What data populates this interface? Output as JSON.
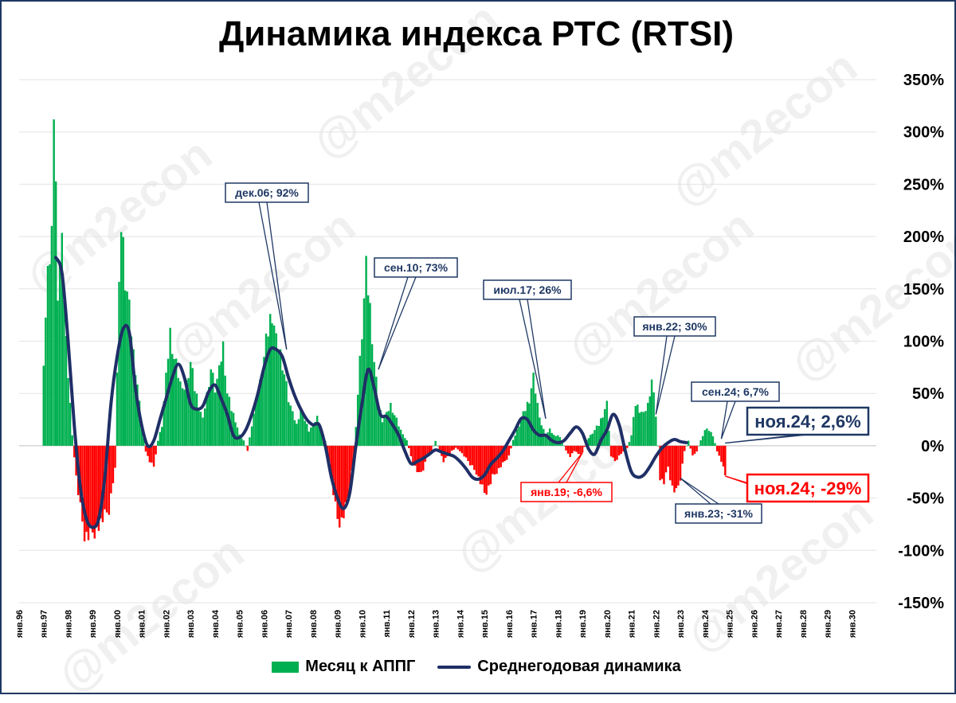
{
  "title": "Динамика индекса РТС (RTSI)",
  "watermark": "@m2econ",
  "colors": {
    "positive_bar": "#00b050",
    "negative_bar": "#ff0000",
    "line": "#1f2f66",
    "frame": "#1f3864",
    "red_label": "#ff0000",
    "navy_label": "#1f3864"
  },
  "legend": {
    "bars": "Месяц к АППГ",
    "line": "Среднегодовая динамика"
  },
  "chart_data": {
    "type": "bar",
    "title": "Динамика индекса РТС (RTSI)",
    "xlabel": "",
    "ylabel": "",
    "ylim": [
      -150,
      350
    ],
    "y_ticks": [
      "350%",
      "300%",
      "250%",
      "200%",
      "150%",
      "100%",
      "50%",
      "0%",
      "-50%",
      "-100%",
      "-150%"
    ],
    "x_ticks": [
      "янв.96",
      "янв.97",
      "янв.98",
      "янв.99",
      "янв.00",
      "янв.01",
      "янв.02",
      "янв.03",
      "янв.04",
      "янв.05",
      "янв.06",
      "янв.07",
      "янв.08",
      "янв.09",
      "янв.10",
      "янв.11",
      "янв.12",
      "янв.13",
      "янв.14",
      "янв.15",
      "янв.16",
      "янв.17",
      "янв.18",
      "янв.19",
      "янв.20",
      "янв.21",
      "янв.22",
      "янв.23",
      "янв.24",
      "янв.25",
      "янв.26",
      "янв.27",
      "янв.28",
      "янв.29",
      "янв.30"
    ],
    "x_start": 1996.0,
    "gridlines": true,
    "legend_position": "bottom",
    "series": [
      {
        "name": "Месяц к АППГ",
        "kind": "bars",
        "note": "monthly year-over-year change, %, from янв.97 to ноя.24",
        "points": [
          [
            1997.0,
            85
          ],
          [
            1997.17,
            160
          ],
          [
            1997.33,
            205
          ],
          [
            1997.42,
            320
          ],
          [
            1997.58,
            150
          ],
          [
            1997.75,
            185
          ],
          [
            1997.92,
            100
          ],
          [
            1998.17,
            10
          ],
          [
            1998.33,
            -30
          ],
          [
            1998.5,
            -60
          ],
          [
            1998.67,
            -85
          ],
          [
            1998.83,
            -88
          ],
          [
            1999.0,
            -85
          ],
          [
            1999.33,
            -75
          ],
          [
            1999.67,
            -60
          ],
          [
            1999.92,
            -20
          ],
          [
            2000.0,
            70
          ],
          [
            2000.17,
            215
          ],
          [
            2000.33,
            165
          ],
          [
            2000.5,
            130
          ],
          [
            2000.67,
            90
          ],
          [
            2000.83,
            60
          ],
          [
            2001.0,
            20
          ],
          [
            2001.17,
            -5
          ],
          [
            2001.33,
            -15
          ],
          [
            2001.5,
            -20
          ],
          [
            2001.67,
            5
          ],
          [
            2001.83,
            20
          ],
          [
            2002.0,
            65
          ],
          [
            2002.17,
            110
          ],
          [
            2002.33,
            85
          ],
          [
            2002.5,
            70
          ],
          [
            2002.67,
            50
          ],
          [
            2002.83,
            60
          ],
          [
            2003.0,
            80
          ],
          [
            2003.17,
            55
          ],
          [
            2003.33,
            40
          ],
          [
            2003.5,
            25
          ],
          [
            2003.67,
            50
          ],
          [
            2003.83,
            75
          ],
          [
            2004.0,
            55
          ],
          [
            2004.17,
            70
          ],
          [
            2004.33,
            95
          ],
          [
            2004.5,
            50
          ],
          [
            2004.67,
            35
          ],
          [
            2004.83,
            25
          ],
          [
            2005.0,
            10
          ],
          [
            2005.17,
            5
          ],
          [
            2005.33,
            -5
          ],
          [
            2005.5,
            20
          ],
          [
            2005.67,
            40
          ],
          [
            2005.83,
            60
          ],
          [
            2006.0,
            85
          ],
          [
            2006.17,
            110
          ],
          [
            2006.33,
            130
          ],
          [
            2006.5,
            100
          ],
          [
            2006.67,
            90
          ],
          [
            2006.83,
            70
          ],
          [
            2007.0,
            45
          ],
          [
            2007.17,
            30
          ],
          [
            2007.33,
            20
          ],
          [
            2007.5,
            35
          ],
          [
            2007.67,
            25
          ],
          [
            2007.83,
            15
          ],
          [
            2008.0,
            20
          ],
          [
            2008.17,
            28
          ],
          [
            2008.33,
            15
          ],
          [
            2008.5,
            5
          ],
          [
            2008.67,
            -20
          ],
          [
            2008.83,
            -45
          ],
          [
            2009.0,
            -70
          ],
          [
            2009.17,
            -72
          ],
          [
            2009.33,
            -60
          ],
          [
            2009.5,
            -40
          ],
          [
            2009.67,
            -10
          ],
          [
            2009.83,
            50
          ],
          [
            2010.0,
            110
          ],
          [
            2010.17,
            165
          ],
          [
            2010.33,
            130
          ],
          [
            2010.5,
            80
          ],
          [
            2010.67,
            40
          ],
          [
            2010.83,
            25
          ],
          [
            2011.0,
            30
          ],
          [
            2011.17,
            40
          ],
          [
            2011.33,
            30
          ],
          [
            2011.5,
            20
          ],
          [
            2011.67,
            10
          ],
          [
            2011.83,
            5
          ],
          [
            2012.0,
            -10
          ],
          [
            2012.17,
            -20
          ],
          [
            2012.33,
            -28
          ],
          [
            2012.5,
            -22
          ],
          [
            2012.67,
            -10
          ],
          [
            2012.83,
            -5
          ],
          [
            2013.0,
            5
          ],
          [
            2013.17,
            -5
          ],
          [
            2013.33,
            -15
          ],
          [
            2013.5,
            -10
          ],
          [
            2013.67,
            -5
          ],
          [
            2013.83,
            -2
          ],
          [
            2014.0,
            -5
          ],
          [
            2014.17,
            -10
          ],
          [
            2014.33,
            -15
          ],
          [
            2014.5,
            -20
          ],
          [
            2014.67,
            -25
          ],
          [
            2014.83,
            -35
          ],
          [
            2015.0,
            -45
          ],
          [
            2015.17,
            -40
          ],
          [
            2015.33,
            -30
          ],
          [
            2015.5,
            -25
          ],
          [
            2015.67,
            -20
          ],
          [
            2015.83,
            -15
          ],
          [
            2016.0,
            -10
          ],
          [
            2016.17,
            5
          ],
          [
            2016.33,
            15
          ],
          [
            2016.5,
            25
          ],
          [
            2016.67,
            35
          ],
          [
            2016.83,
            45
          ],
          [
            2017.0,
            65
          ],
          [
            2017.17,
            40
          ],
          [
            2017.33,
            20
          ],
          [
            2017.5,
            10
          ],
          [
            2017.67,
            15
          ],
          [
            2017.83,
            10
          ],
          [
            2018.0,
            10
          ],
          [
            2018.17,
            5
          ],
          [
            2018.33,
            -5
          ],
          [
            2018.5,
            -10
          ],
          [
            2018.67,
            -5
          ],
          [
            2018.83,
            -8
          ],
          [
            2019.0,
            -7
          ],
          [
            2019.17,
            5
          ],
          [
            2019.33,
            10
          ],
          [
            2019.5,
            15
          ],
          [
            2019.67,
            20
          ],
          [
            2019.83,
            30
          ],
          [
            2020.0,
            40
          ],
          [
            2020.17,
            -10
          ],
          [
            2020.33,
            -15
          ],
          [
            2020.5,
            -10
          ],
          [
            2020.67,
            -5
          ],
          [
            2020.83,
            -2
          ],
          [
            2021.0,
            10
          ],
          [
            2021.17,
            40
          ],
          [
            2021.33,
            35
          ],
          [
            2021.5,
            30
          ],
          [
            2021.67,
            40
          ],
          [
            2021.83,
            65
          ],
          [
            2022.0,
            30
          ],
          [
            2022.17,
            -30
          ],
          [
            2022.33,
            -35
          ],
          [
            2022.5,
            -20
          ],
          [
            2022.67,
            -40
          ],
          [
            2022.83,
            -45
          ],
          [
            2023.0,
            -31
          ],
          [
            2023.17,
            -5
          ],
          [
            2023.33,
            5
          ],
          [
            2023.5,
            -10
          ],
          [
            2023.67,
            -5
          ],
          [
            2023.83,
            5
          ],
          [
            2024.0,
            15
          ],
          [
            2024.17,
            15
          ],
          [
            2024.33,
            10
          ],
          [
            2024.5,
            -5
          ],
          [
            2024.67,
            -15
          ],
          [
            2024.83,
            -29
          ]
        ]
      },
      {
        "name": "Среднегодовая динамика",
        "kind": "line",
        "note": "rolling average, %",
        "points": [
          [
            1997.5,
            180
          ],
          [
            1997.75,
            165
          ],
          [
            1998.0,
            100
          ],
          [
            1998.25,
            20
          ],
          [
            1998.5,
            -40
          ],
          [
            1998.75,
            -70
          ],
          [
            1999.0,
            -78
          ],
          [
            1999.25,
            -70
          ],
          [
            1999.5,
            -30
          ],
          [
            1999.75,
            40
          ],
          [
            2000.0,
            85
          ],
          [
            2000.25,
            112
          ],
          [
            2000.5,
            108
          ],
          [
            2000.75,
            55
          ],
          [
            2001.0,
            20
          ],
          [
            2001.25,
            0
          ],
          [
            2001.5,
            5
          ],
          [
            2001.75,
            25
          ],
          [
            2002.0,
            45
          ],
          [
            2002.25,
            65
          ],
          [
            2002.5,
            78
          ],
          [
            2002.75,
            65
          ],
          [
            2003.0,
            40
          ],
          [
            2003.25,
            35
          ],
          [
            2003.5,
            38
          ],
          [
            2003.75,
            52
          ],
          [
            2004.0,
            58
          ],
          [
            2004.25,
            45
          ],
          [
            2004.5,
            30
          ],
          [
            2004.75,
            10
          ],
          [
            2005.0,
            8
          ],
          [
            2005.25,
            15
          ],
          [
            2005.5,
            30
          ],
          [
            2005.75,
            50
          ],
          [
            2006.0,
            75
          ],
          [
            2006.25,
            92
          ],
          [
            2006.5,
            92
          ],
          [
            2006.75,
            85
          ],
          [
            2007.0,
            65
          ],
          [
            2007.25,
            48
          ],
          [
            2007.5,
            35
          ],
          [
            2007.75,
            25
          ],
          [
            2008.0,
            20
          ],
          [
            2008.25,
            20
          ],
          [
            2008.5,
            0
          ],
          [
            2008.75,
            -30
          ],
          [
            2009.0,
            -50
          ],
          [
            2009.25,
            -60
          ],
          [
            2009.5,
            -45
          ],
          [
            2009.75,
            0
          ],
          [
            2010.0,
            40
          ],
          [
            2010.25,
            73
          ],
          [
            2010.5,
            55
          ],
          [
            2010.75,
            30
          ],
          [
            2011.0,
            28
          ],
          [
            2011.25,
            20
          ],
          [
            2011.5,
            10
          ],
          [
            2011.75,
            -5
          ],
          [
            2012.0,
            -17
          ],
          [
            2012.25,
            -15
          ],
          [
            2012.5,
            -12
          ],
          [
            2012.75,
            -8
          ],
          [
            2013.0,
            -4
          ],
          [
            2013.25,
            -6
          ],
          [
            2013.5,
            -8
          ],
          [
            2013.75,
            -10
          ],
          [
            2014.0,
            -15
          ],
          [
            2014.25,
            -22
          ],
          [
            2014.5,
            -30
          ],
          [
            2014.75,
            -32
          ],
          [
            2015.0,
            -28
          ],
          [
            2015.25,
            -18
          ],
          [
            2015.5,
            -12
          ],
          [
            2015.75,
            -5
          ],
          [
            2016.0,
            5
          ],
          [
            2016.25,
            15
          ],
          [
            2016.5,
            26
          ],
          [
            2016.75,
            25
          ],
          [
            2017.0,
            15
          ],
          [
            2017.25,
            10
          ],
          [
            2017.5,
            10
          ],
          [
            2017.75,
            5
          ],
          [
            2018.0,
            3
          ],
          [
            2018.25,
            5
          ],
          [
            2018.5,
            12
          ],
          [
            2018.75,
            18
          ],
          [
            2019.0,
            12
          ],
          [
            2019.25,
            -3
          ],
          [
            2019.5,
            -8
          ],
          [
            2019.75,
            5
          ],
          [
            2020.0,
            15
          ],
          [
            2020.25,
            30
          ],
          [
            2020.5,
            20
          ],
          [
            2020.75,
            -5
          ],
          [
            2021.0,
            -25
          ],
          [
            2021.25,
            -30
          ],
          [
            2021.5,
            -28
          ],
          [
            2021.75,
            -20
          ],
          [
            2022.0,
            -10
          ],
          [
            2022.25,
            -2
          ],
          [
            2022.5,
            3
          ],
          [
            2022.75,
            6
          ],
          [
            2023.0,
            4
          ],
          [
            2023.25,
            3
          ]
        ]
      }
    ],
    "annotations": [
      {
        "text": "дек.06; 92%",
        "x": 2006.92,
        "y": 92,
        "color": "navy",
        "size": "small"
      },
      {
        "text": "сен.10; 73%",
        "x": 2010.67,
        "y": 73,
        "color": "navy",
        "size": "small"
      },
      {
        "text": "июл.17; 26%",
        "x": 2017.5,
        "y": 26,
        "color": "navy",
        "size": "small"
      },
      {
        "text": "янв.22; 30%",
        "x": 2022.0,
        "y": 30,
        "color": "navy",
        "size": "small"
      },
      {
        "text": "сен.24; 6,7%",
        "x": 2024.67,
        "y": 6.7,
        "color": "navy",
        "size": "small"
      },
      {
        "text": "ноя.24; 2,6%",
        "x": 2024.83,
        "y": 2.6,
        "color": "navy",
        "size": "large"
      },
      {
        "text": "ноя.24; -29%",
        "x": 2024.83,
        "y": -29,
        "color": "red",
        "size": "large"
      },
      {
        "text": "янв.19; -6,6%",
        "x": 2019.0,
        "y": -6.6,
        "color": "red",
        "size": "small"
      },
      {
        "text": "янв.23; -31%",
        "x": 2023.0,
        "y": -31,
        "color": "navy",
        "size": "small"
      }
    ]
  }
}
